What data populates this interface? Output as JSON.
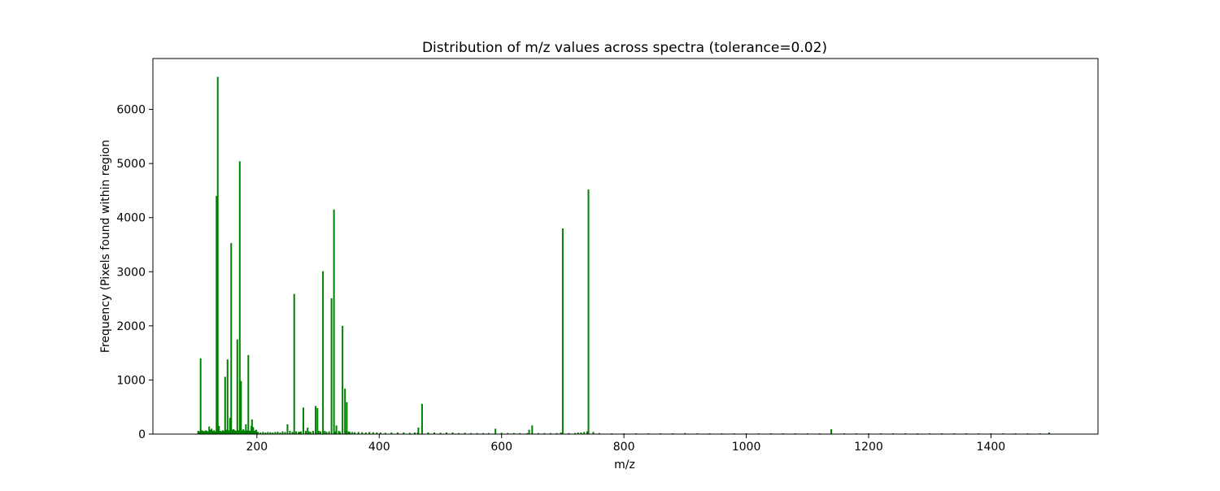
{
  "chart_data": {
    "type": "bar",
    "title": "Distribution of m/z values across spectra (tolerance=0.02)",
    "xlabel": "m/z",
    "ylabel": "Frequency (Pixels found within region",
    "xlim": [
      30,
      1575
    ],
    "ylim": [
      0,
      6940
    ],
    "xticks": [
      200,
      400,
      600,
      800,
      1000,
      1200,
      1400
    ],
    "yticks": [
      0,
      1000,
      2000,
      3000,
      4000,
      5000,
      6000
    ],
    "grid": false,
    "legend": "none",
    "bar_color": "#008000",
    "series": [
      {
        "x": [
          104,
          106,
          108,
          110,
          112,
          114,
          116,
          118,
          120,
          122,
          124,
          126,
          128,
          130,
          132,
          134,
          136,
          137,
          138,
          140,
          142,
          144,
          146,
          148,
          150,
          152,
          154,
          156,
          158,
          160,
          162,
          164,
          166,
          168,
          170,
          172,
          174,
          175,
          176,
          178,
          180,
          182,
          184,
          186,
          188,
          190,
          191,
          192,
          194,
          196,
          198,
          199,
          200,
          202,
          206,
          210,
          214,
          218,
          222,
          226,
          230,
          234,
          238,
          242,
          246,
          250,
          254,
          258,
          261,
          264,
          268,
          270,
          272,
          276,
          280,
          283,
          285,
          288,
          292,
          296,
          299,
          301,
          304,
          308,
          311,
          314,
          318,
          322,
          326,
          328,
          330,
          334,
          336,
          340,
          344,
          345,
          347,
          350,
          352,
          356,
          360,
          366,
          372,
          378,
          384,
          390,
          396,
          402,
          410,
          420,
          430,
          440,
          450,
          458,
          463,
          464,
          470,
          480,
          490,
          500,
          510,
          520,
          530,
          540,
          550,
          560,
          570,
          579,
          590,
          600,
          610,
          620,
          630,
          642,
          645,
          650,
          660,
          670,
          680,
          690,
          697,
          700,
          710,
          720,
          725,
          730,
          735,
          740,
          742,
          750,
          760,
          780,
          800,
          820,
          840,
          860,
          880,
          900,
          920,
          940,
          960,
          980,
          1000,
          1020,
          1040,
          1060,
          1080,
          1100,
          1120,
          1139,
          1160,
          1180,
          1200,
          1220,
          1240,
          1260,
          1280,
          1300,
          1320,
          1340,
          1360,
          1380,
          1400,
          1420,
          1440,
          1460,
          1480,
          1495
        ],
        "values": [
          60,
          50,
          1400,
          70,
          60,
          50,
          70,
          60,
          50,
          140,
          80,
          100,
          60,
          70,
          50,
          4400,
          6600,
          80,
          150,
          60,
          50,
          70,
          60,
          1060,
          80,
          1380,
          70,
          300,
          3530,
          80,
          90,
          70,
          60,
          1750,
          70,
          5040,
          980,
          60,
          70,
          90,
          60,
          180,
          70,
          1460,
          60,
          70,
          150,
          270,
          130,
          60,
          70,
          80,
          40,
          40,
          30,
          40,
          30,
          40,
          35,
          30,
          40,
          45,
          30,
          50,
          40,
          180,
          60,
          40,
          2590,
          50,
          40,
          40,
          50,
          490,
          60,
          120,
          50,
          40,
          60,
          520,
          480,
          60,
          50,
          3010,
          60,
          40,
          50,
          2510,
          4150,
          50,
          160,
          60,
          40,
          2000,
          840,
          60,
          590,
          50,
          40,
          40,
          35,
          40,
          35,
          30,
          40,
          35,
          30,
          30,
          25,
          30,
          30,
          30,
          25,
          30,
          30,
          120,
          560,
          30,
          30,
          25,
          30,
          30,
          20,
          25,
          20,
          20,
          20,
          20,
          100,
          25,
          20,
          20,
          20,
          20,
          80,
          160,
          20,
          20,
          20,
          20,
          30,
          3800,
          20,
          20,
          30,
          30,
          40,
          50,
          4520,
          40,
          20,
          15,
          15,
          15,
          15,
          15,
          15,
          20,
          15,
          15,
          15,
          15,
          15,
          15,
          15,
          15,
          15,
          15,
          15,
          90,
          15,
          15,
          15,
          15,
          15,
          15,
          15,
          15,
          15,
          15,
          15,
          15,
          15,
          15,
          15,
          15,
          15,
          30
        ]
      }
    ]
  }
}
